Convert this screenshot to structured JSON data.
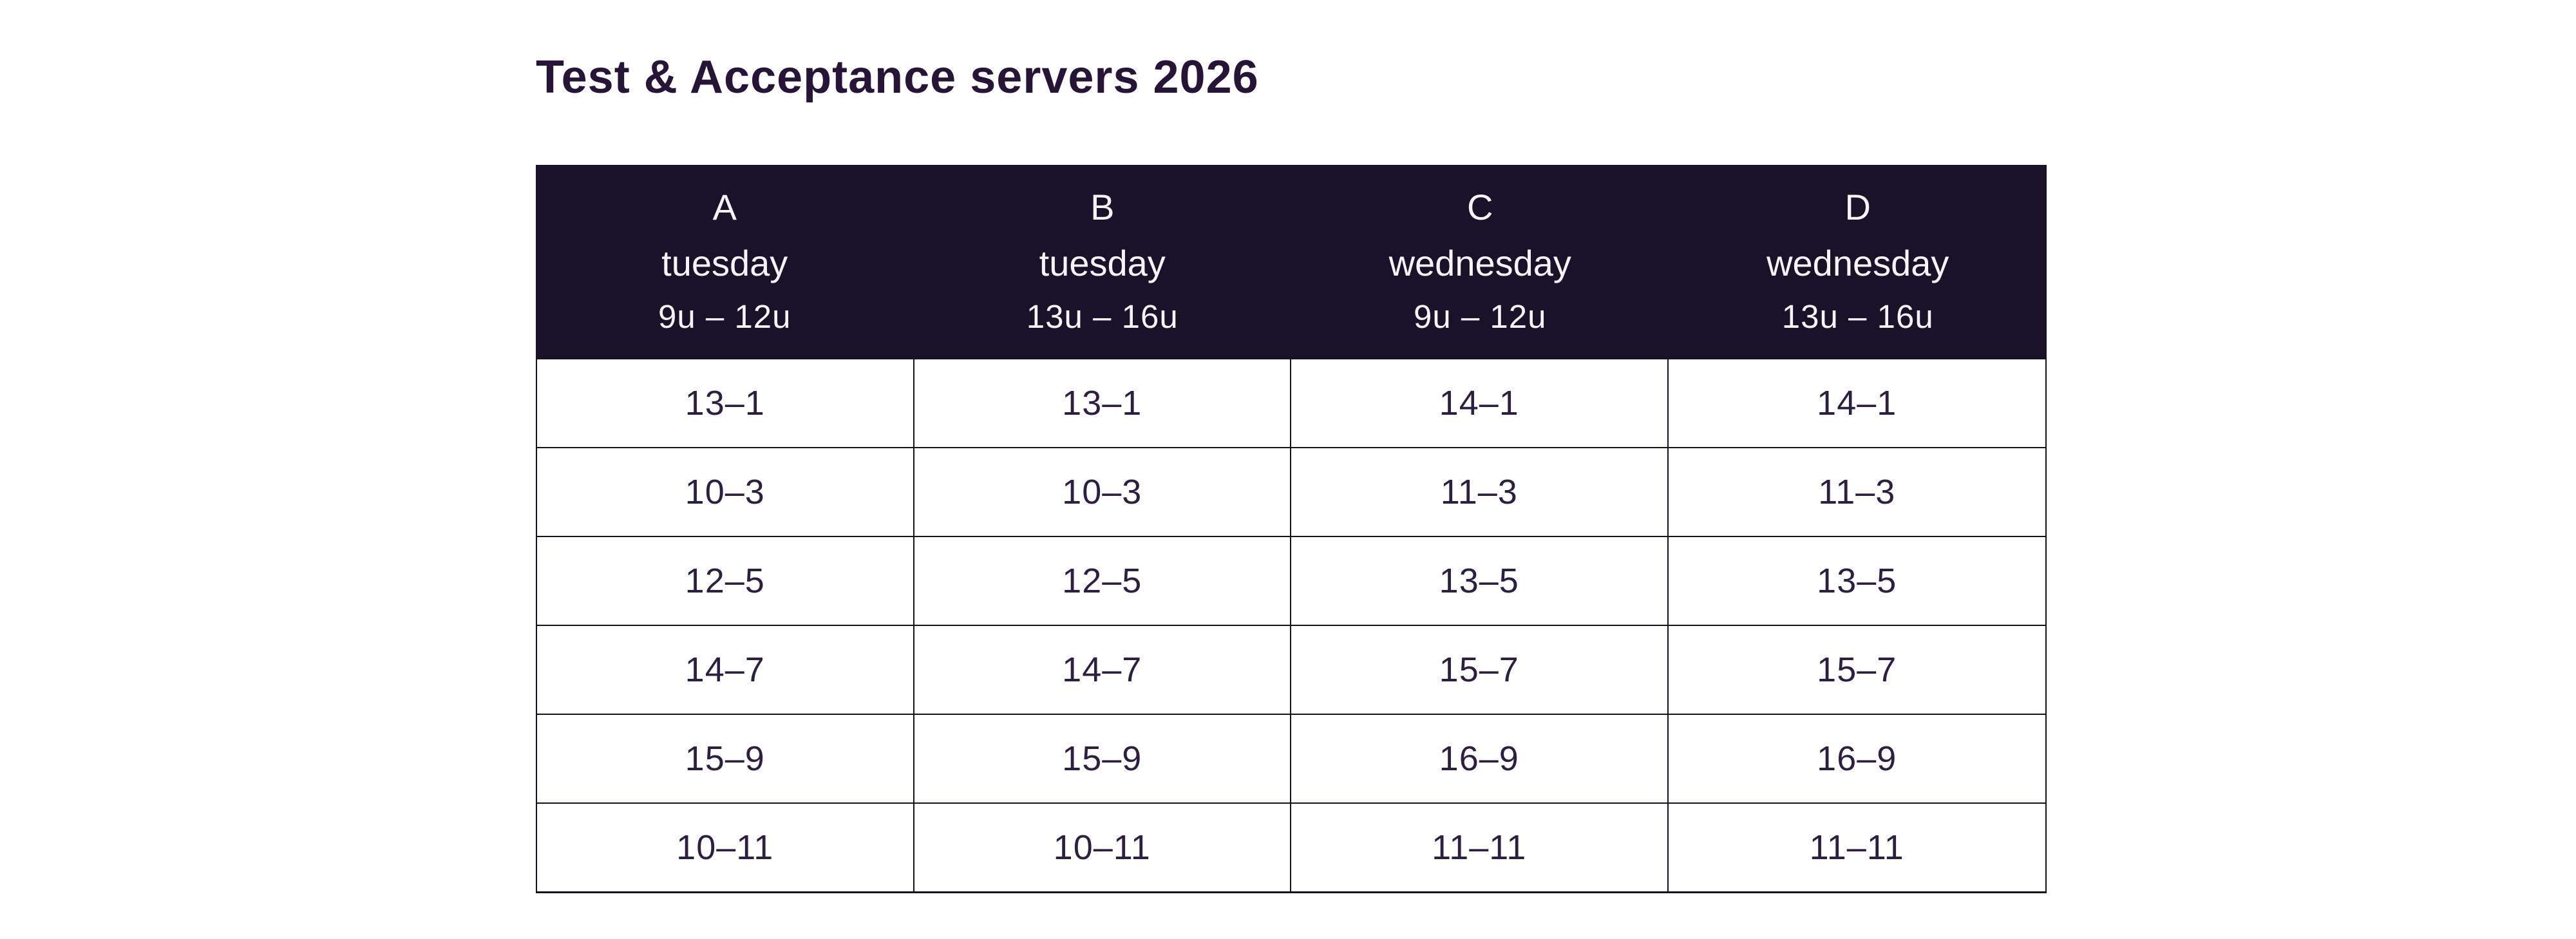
{
  "title": "Test & Acceptance servers 2026",
  "colors": {
    "page_background": "#ffffff",
    "header_background": "#1a1228",
    "header_text": "#f7f5fa",
    "body_text": "#2d1f42",
    "title_text": "#261537",
    "table_border": "#17101f"
  },
  "table": {
    "columns": [
      {
        "letter": "A",
        "day": "tuesday",
        "time": "9u – 12u"
      },
      {
        "letter": "B",
        "day": "tuesday",
        "time": "13u – 16u"
      },
      {
        "letter": "C",
        "day": "wednesday",
        "time": "9u – 12u"
      },
      {
        "letter": "D",
        "day": "wednesday",
        "time": "13u – 16u"
      }
    ],
    "rows": [
      [
        "13–1",
        "13–1",
        "14–1",
        "14–1"
      ],
      [
        "10–3",
        "10–3",
        "11–3",
        "11–3"
      ],
      [
        "12–5",
        "12–5",
        "13–5",
        "13–5"
      ],
      [
        "14–7",
        "14–7",
        "15–7",
        "15–7"
      ],
      [
        "15–9",
        "15–9",
        "16–9",
        "16–9"
      ],
      [
        "10–11",
        "10–11",
        "11–11",
        "11–11"
      ]
    ]
  }
}
